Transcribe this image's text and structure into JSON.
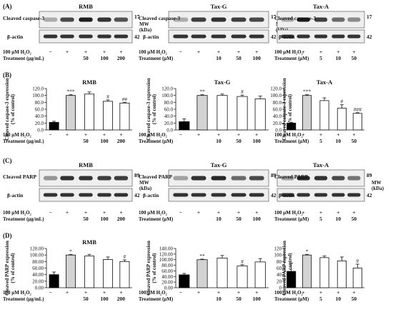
{
  "panel_labels": {
    "A": "(A)",
    "B": "(B)",
    "C": "(C)",
    "D": "(D)"
  },
  "groups": [
    {
      "id": "rmb",
      "title": "RMB",
      "unit_label": "Treatment (μg/mL)",
      "treatment": [
        "",
        "",
        "50",
        "100",
        "200"
      ]
    },
    {
      "id": "taxg",
      "title": "Tax-G",
      "unit_label": "Treatment (μM)",
      "treatment": [
        "",
        "",
        "10",
        "50",
        "100"
      ]
    },
    {
      "id": "taxa",
      "title": "Tax-A",
      "unit_label": "Treatment (μM)",
      "treatment": [
        "",
        "",
        "5",
        "10",
        "50"
      ]
    }
  ],
  "h2o2_label": "100 μM H₂O₂",
  "h2o2_row": [
    "−",
    "+",
    "+",
    "+",
    "+"
  ],
  "blot_labels": {
    "caspase": "Cleaved caspase-3",
    "parp": "Cleaved PARP",
    "actin": "β-actin",
    "mw": "MW",
    "kda": "(kDa)"
  },
  "mw_values": {
    "caspase": "17",
    "parp": "89",
    "actin": "42"
  },
  "colors": {
    "control_bar": "#000000",
    "h2o2_bar": "#d3d3d3",
    "treated_bar": "#ffffff"
  },
  "chart_data": [
    {
      "type": "bar",
      "panel": "B",
      "group": "RMB",
      "ylabel": "Cleaved caspase-3 expression (% of control)",
      "ylim": [
        0,
        120
      ],
      "yticks": [
        "0.0",
        "20.0",
        "40.0",
        "60.0",
        "80.0",
        "100.0",
        "120.0"
      ],
      "values": [
        22,
        100,
        104,
        83,
        78
      ],
      "errors": [
        3,
        2,
        6,
        4,
        2
      ],
      "annotations": [
        "",
        "***",
        "",
        "#",
        "##"
      ]
    },
    {
      "type": "bar",
      "panel": "B",
      "group": "Tax-G",
      "ylabel": "Cleaved caspase-3 expression (% of control)",
      "ylim": [
        0,
        120
      ],
      "yticks": [
        "0.0",
        "20.0",
        "40.0",
        "60.0",
        "80.0",
        "100.0",
        "120.0"
      ],
      "values": [
        24,
        100,
        100,
        97,
        90
      ],
      "errors": [
        8,
        2,
        4,
        4,
        8
      ],
      "annotations": [
        "",
        "**",
        "",
        "#",
        ""
      ]
    },
    {
      "type": "bar",
      "panel": "B",
      "group": "Tax-A",
      "ylabel": "Cleaved caspase-3 expression (% of control)",
      "ylim": [
        0,
        120
      ],
      "yticks": [
        "0.0",
        "20.0",
        "40.0",
        "60.0",
        "80.0",
        "100.0",
        "120.0"
      ],
      "values": [
        20,
        100,
        85,
        63,
        48
      ],
      "errors": [
        2,
        2,
        8,
        10,
        2
      ],
      "annotations": [
        "",
        "***",
        "",
        "#",
        "###"
      ]
    },
    {
      "type": "bar",
      "panel": "D",
      "group": "RMB",
      "ylabel": "Cleaved PARP expression (% of control)",
      "ylim": [
        0,
        120
      ],
      "yticks": [
        "0.00",
        "20.00",
        "40.00",
        "60.00",
        "80.00",
        "100.00",
        "120.00"
      ],
      "values": [
        40,
        100,
        97,
        86,
        80
      ],
      "errors": [
        8,
        2,
        5,
        8,
        5
      ],
      "annotations": [
        "",
        "*",
        "",
        "",
        "#"
      ]
    },
    {
      "type": "bar",
      "panel": "D",
      "group": "Tax-G",
      "ylabel": "Cleaved PARP expression (% of control)",
      "ylim": [
        0,
        140
      ],
      "yticks": [
        "0.00",
        "20.00",
        "40.00",
        "60.00",
        "80.00",
        "100.00",
        "120.00",
        "140.00"
      ],
      "values": [
        46,
        100,
        106,
        78,
        92
      ],
      "errors": [
        5,
        2,
        9,
        4,
        12
      ],
      "annotations": [
        "",
        "**",
        "",
        "#",
        ""
      ]
    },
    {
      "type": "bar",
      "panel": "D",
      "group": "Tax-A",
      "ylabel": "Cleaved PARP expression (% of control)",
      "ylim": [
        0,
        120
      ],
      "yticks": [
        "0",
        "20",
        "40",
        "60",
        "80",
        "100",
        "120"
      ],
      "values": [
        50,
        100,
        92,
        82,
        60
      ],
      "errors": [
        25,
        2,
        5,
        12,
        12
      ],
      "annotations": [
        "",
        "*",
        "",
        "",
        "#"
      ]
    }
  ]
}
